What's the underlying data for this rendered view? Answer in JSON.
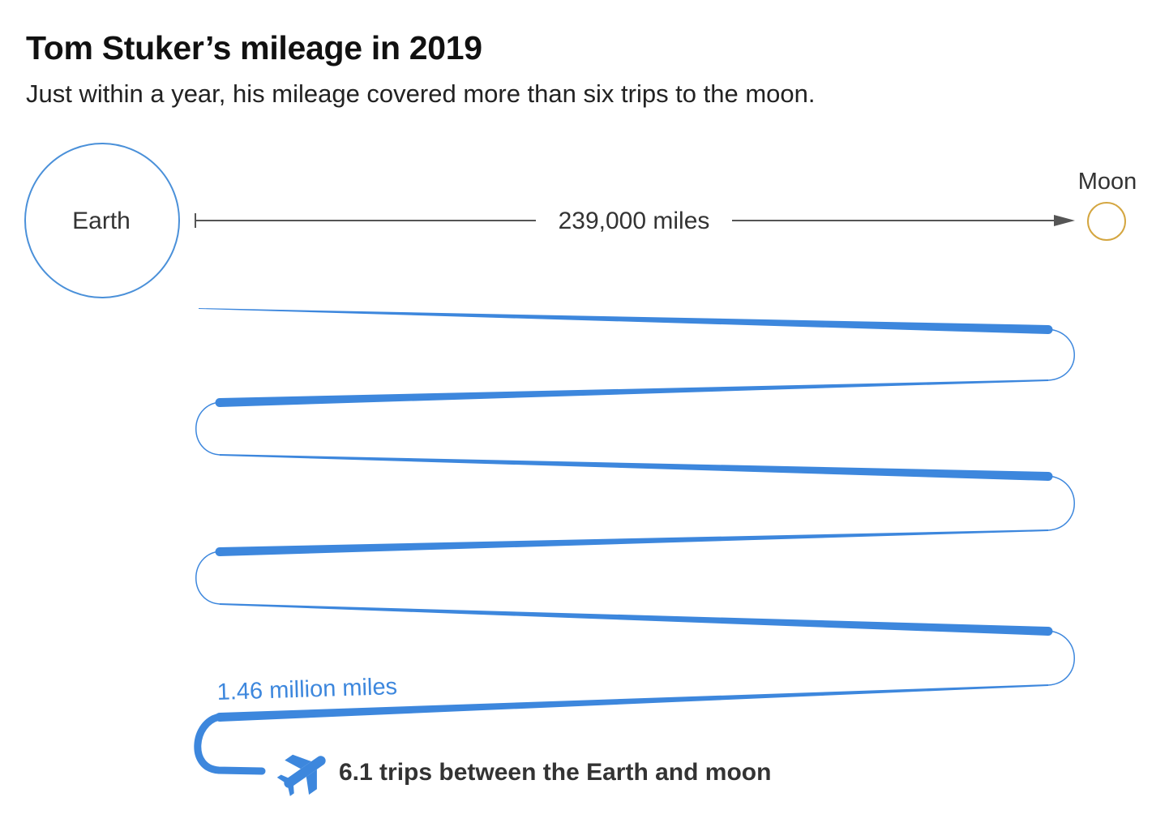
{
  "header": {
    "title": "Tom Stuker’s mileage in 2019",
    "subtitle": "Just within a year, his mileage covered more than six trips to the moon."
  },
  "diagram": {
    "earth_label": "Earth",
    "moon_label": "Moon",
    "distance_label": "239,000 miles",
    "total_label": "1.46 million miles",
    "trips_label": "6.1 trips between the Earth and moon",
    "trips": 6.1,
    "distance_miles": 239000,
    "total_miles": 1460000
  },
  "icons": {
    "earth": "earth-circle-icon",
    "moon": "moon-circle-icon",
    "plane": "airplane-icon"
  },
  "colors": {
    "path_blue": "#3d87dd",
    "earth_outline": "#4a90d9",
    "moon_outline": "#d4a640",
    "arrow_gray": "#555555",
    "text_dark": "#333333",
    "total_label_blue": "#3d87dd"
  }
}
